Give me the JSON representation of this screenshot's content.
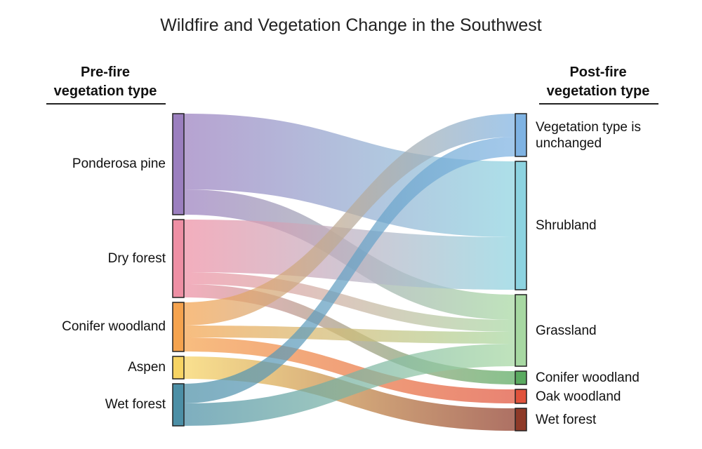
{
  "title": "Wildfire and Vegetation Change in the Southwest",
  "left_heading": [
    "Pre-fire",
    "vegetation type"
  ],
  "right_heading": [
    "Post-fire",
    "vegetation type"
  ],
  "chart_data": {
    "type": "sankey",
    "title": "Wildfire and Vegetation Change in the Southwest",
    "sources": [
      {
        "id": "ponderosa",
        "label": "Ponderosa pine",
        "color": "#9b7fbf"
      },
      {
        "id": "dry",
        "label": "Dry forest",
        "color": "#ee8fa4"
      },
      {
        "id": "conifer",
        "label": "Conifer woodland",
        "color": "#f5a34e"
      },
      {
        "id": "aspen",
        "label": "Aspen",
        "color": "#f7d463"
      },
      {
        "id": "wet",
        "label": "Wet forest",
        "color": "#4c8fa6"
      }
    ],
    "targets": [
      {
        "id": "unchanged",
        "label": "Vegetation type is unchanged",
        "color": "#7fb3e3"
      },
      {
        "id": "shrub",
        "label": "Shrubland",
        "color": "#8dd3e0"
      },
      {
        "id": "grass",
        "label": "Grassland",
        "color": "#a7d8a2"
      },
      {
        "id": "conw",
        "label": "Conifer woodland",
        "color": "#5aaa60"
      },
      {
        "id": "oak",
        "label": "Oak woodland",
        "color": "#e0533c"
      },
      {
        "id": "wetf",
        "label": "Wet forest",
        "color": "#8e3a28"
      }
    ],
    "links": [
      {
        "source": "ponderosa",
        "target": "shrub",
        "value": 108
      },
      {
        "source": "ponderosa",
        "target": "grass",
        "value": 36
      },
      {
        "source": "dry",
        "target": "shrub",
        "value": 75
      },
      {
        "source": "dry",
        "target": "grass",
        "value": 17
      },
      {
        "source": "dry",
        "target": "conw",
        "value": 19
      },
      {
        "source": "conifer",
        "target": "unchanged",
        "value": 33
      },
      {
        "source": "conifer",
        "target": "grass",
        "value": 17
      },
      {
        "source": "conifer",
        "target": "oak",
        "value": 20
      },
      {
        "source": "aspen",
        "target": "wetf",
        "value": 32
      },
      {
        "source": "wet",
        "target": "unchanged",
        "value": 28
      },
      {
        "source": "wet",
        "target": "grass",
        "value": 32
      }
    ]
  }
}
